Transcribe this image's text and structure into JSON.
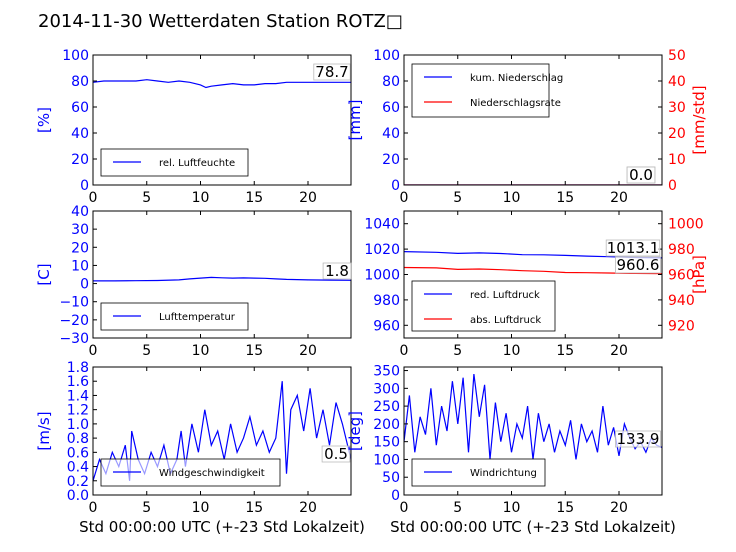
{
  "title": "2014-11-30 Wetterdaten Station ROTZ□",
  "xlabel": "Std 00:00:00 UTC (+-23 Std Lokalzeit)",
  "x_ticks": [
    0,
    5,
    10,
    15,
    20
  ],
  "colors": {
    "primary": "#0000ff",
    "secondary": "#ff0000",
    "frame": "#000000"
  },
  "chart_data": [
    {
      "id": "humidity",
      "type": "line",
      "ylabel": "[%]",
      "xlim": [
        0,
        24
      ],
      "ylim": [
        0,
        100
      ],
      "y_ticks": [
        0,
        20,
        40,
        60,
        80,
        100
      ],
      "legend_position": "lower-left",
      "value_label": "78.7",
      "series": [
        {
          "name": "rel. Luftfeuchte",
          "color": "#0000ff",
          "axis": "left",
          "x": [
            0,
            1,
            2,
            3,
            4,
            5,
            6,
            7,
            8,
            9,
            10,
            10.5,
            11,
            12,
            13,
            14,
            15,
            16,
            17,
            18,
            19,
            20,
            21,
            22,
            23,
            24
          ],
          "y": [
            79,
            80,
            80,
            80,
            80,
            81,
            80,
            79,
            80,
            79,
            77,
            75,
            76,
            77,
            78,
            77,
            77,
            78,
            78,
            79,
            79,
            79,
            79,
            79,
            79,
            79
          ]
        }
      ]
    },
    {
      "id": "precipitation",
      "type": "line",
      "ylabel": "[mm]",
      "ylabel2": "[mm/std]",
      "xlim": [
        0,
        24
      ],
      "ylim": [
        0,
        100
      ],
      "ylim2": [
        0,
        50
      ],
      "y_ticks": [
        0,
        20,
        40,
        60,
        80,
        100
      ],
      "y2_ticks": [
        0,
        10,
        20,
        30,
        40,
        50
      ],
      "legend_position": "upper-left",
      "value_labels": [
        "0.0",
        "0.0"
      ],
      "series": [
        {
          "name": "kum. Niederschlag",
          "color": "#0000ff",
          "axis": "left",
          "x": [
            0,
            24
          ],
          "y": [
            0,
            0
          ]
        },
        {
          "name": "Niederschlagsrate",
          "color": "#ff0000",
          "axis": "right",
          "x": [
            0,
            24
          ],
          "y": [
            0,
            0
          ]
        }
      ]
    },
    {
      "id": "temperature",
      "type": "line",
      "ylabel": "[C]",
      "xlim": [
        0,
        24
      ],
      "ylim": [
        -30,
        40
      ],
      "y_ticks": [
        -30,
        -20,
        -10,
        0,
        10,
        20,
        30,
        40
      ],
      "legend_position": "lower-left",
      "value_label": "1.8",
      "series": [
        {
          "name": "Lufttemperatur",
          "color": "#0000ff",
          "axis": "left",
          "x": [
            0,
            2,
            4,
            6,
            8,
            9,
            10,
            11,
            12,
            13,
            14,
            15,
            16,
            17,
            18,
            20,
            22,
            24
          ],
          "y": [
            1.5,
            1.5,
            1.6,
            1.7,
            2.0,
            2.6,
            3.0,
            3.4,
            3.2,
            3.0,
            3.1,
            3.0,
            2.9,
            2.6,
            2.3,
            2.0,
            1.9,
            1.8
          ]
        }
      ]
    },
    {
      "id": "pressure",
      "type": "line",
      "ylabel2": "[hPa]",
      "xlim": [
        0,
        24
      ],
      "ylim": [
        950,
        1050
      ],
      "ylim2": [
        910,
        1010
      ],
      "y_ticks": [
        960,
        980,
        1000,
        1020,
        1040
      ],
      "y2_ticks": [
        920,
        940,
        960,
        980,
        1000
      ],
      "legend_position": "lower-left",
      "value_labels": [
        "1013.1",
        "960.6"
      ],
      "series": [
        {
          "name": "red. Luftdruck",
          "color": "#0000ff",
          "axis": "left",
          "x": [
            0,
            3,
            5,
            7,
            9,
            11,
            13,
            15,
            17,
            19,
            21,
            24
          ],
          "y": [
            1018,
            1017.5,
            1016.6,
            1017,
            1016.5,
            1015.6,
            1015.5,
            1015,
            1014.5,
            1014,
            1013.5,
            1013.1
          ]
        },
        {
          "name": "abs. Luftdruck",
          "color": "#ff0000",
          "axis": "right",
          "x": [
            0,
            3,
            5,
            7,
            9,
            11,
            13,
            15,
            17,
            19,
            21,
            24
          ],
          "y": [
            965.5,
            965.2,
            964,
            964.3,
            963.8,
            963,
            962.5,
            961.6,
            961.4,
            961.2,
            960.9,
            960.6
          ]
        }
      ]
    },
    {
      "id": "wind-speed",
      "type": "line",
      "ylabel": "[m/s]",
      "xlim": [
        0,
        24
      ],
      "ylim": [
        0,
        1.8
      ],
      "y_ticks": [
        0.0,
        0.2,
        0.4,
        0.6,
        0.8,
        1.0,
        1.2,
        1.4,
        1.6,
        1.8
      ],
      "legend_position": "lower-left",
      "value_label": "0.5",
      "series": [
        {
          "name": "Windgeschwindigkeit",
          "color": "#0000ff",
          "axis": "left",
          "x": [
            0,
            0.6,
            1.2,
            1.8,
            2.4,
            3.0,
            3.4,
            3.6,
            4.2,
            4.8,
            5.4,
            6.0,
            6.6,
            7.2,
            7.8,
            8.2,
            8.6,
            9.2,
            9.8,
            10.4,
            11.0,
            11.6,
            12.2,
            12.8,
            13.4,
            14.0,
            14.6,
            15.2,
            15.8,
            16.4,
            17.0,
            17.6,
            18.0,
            18.4,
            19.0,
            19.6,
            20.2,
            20.8,
            21.4,
            22.0,
            22.6,
            23.2,
            24
          ],
          "y": [
            0.2,
            0.5,
            0.3,
            0.6,
            0.4,
            0.7,
            0.2,
            0.9,
            0.5,
            0.3,
            0.6,
            0.4,
            0.7,
            0.3,
            0.5,
            0.9,
            0.4,
            1.0,
            0.6,
            1.2,
            0.7,
            0.9,
            0.5,
            1.0,
            0.6,
            0.8,
            1.1,
            0.7,
            0.9,
            0.6,
            0.8,
            1.6,
            0.3,
            1.2,
            1.4,
            0.9,
            1.5,
            0.8,
            1.2,
            0.7,
            1.3,
            1.0,
            0.5
          ]
        }
      ]
    },
    {
      "id": "wind-direction",
      "type": "line",
      "ylabel": "[deg]",
      "xlim": [
        0,
        24
      ],
      "ylim": [
        0,
        360
      ],
      "y_ticks": [
        0,
        50,
        100,
        150,
        200,
        250,
        300,
        350
      ],
      "legend_position": "lower-left",
      "value_label": "133.9",
      "series": [
        {
          "name": "Windrichtung",
          "color": "#0000ff",
          "axis": "left",
          "x": [
            0,
            0.5,
            1,
            1.5,
            2,
            2.5,
            3,
            3.5,
            4,
            4.5,
            5,
            5.5,
            6,
            6.5,
            7,
            7.5,
            8,
            8.5,
            9,
            9.5,
            10,
            10.5,
            11,
            11.5,
            12,
            12.5,
            13,
            13.5,
            14,
            14.5,
            15,
            15.5,
            16,
            16.5,
            17,
            17.5,
            18,
            18.5,
            19,
            19.5,
            20,
            20.5,
            21,
            21.5,
            22,
            22.5,
            23,
            23.5,
            24
          ],
          "y": [
            150,
            280,
            120,
            220,
            170,
            300,
            140,
            250,
            180,
            320,
            200,
            330,
            120,
            340,
            220,
            310,
            100,
            260,
            150,
            230,
            120,
            200,
            160,
            250,
            100,
            230,
            150,
            200,
            120,
            180,
            140,
            210,
            100,
            200,
            150,
            180,
            120,
            250,
            140,
            190,
            110,
            200,
            160,
            130,
            150,
            120,
            160,
            140,
            134
          ]
        }
      ]
    }
  ]
}
